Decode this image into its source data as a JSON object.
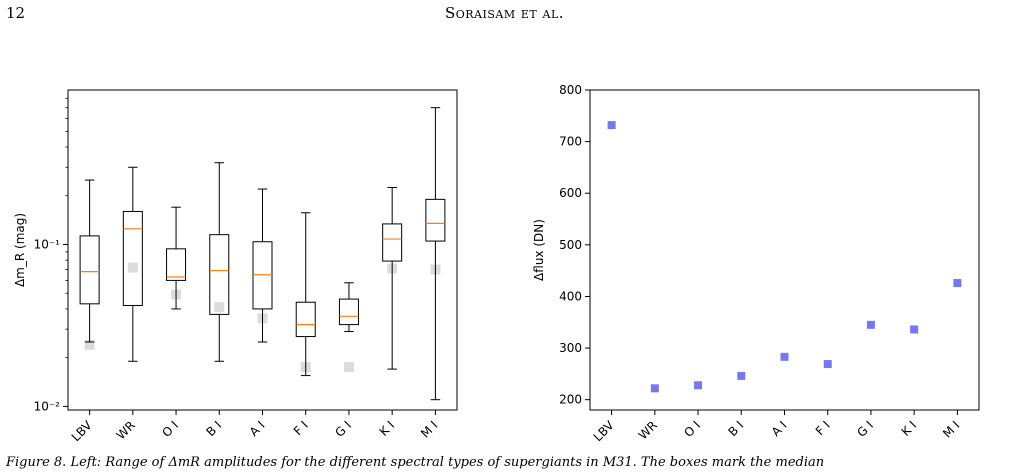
{
  "page": {
    "number": "12",
    "running_head": "Soraisam et al."
  },
  "caption": "Figure 8.   Left: Range of ΔmR amplitudes for the different spectral types of supergiants in M31. The boxes mark the median",
  "chart_data": [
    {
      "type": "box",
      "scale": "log",
      "ylabel": "Δm_R (mag)",
      "ylim": [
        0.0095,
        0.9
      ],
      "yticks": [
        0.01,
        0.1
      ],
      "ytick_labels": [
        "10⁻²",
        "10⁻¹"
      ],
      "categories": [
        "LBV",
        "WR",
        "O I",
        "B I",
        "A I",
        "F I",
        "G I",
        "K I",
        "M I"
      ],
      "boxes": [
        {
          "whisker_low": 0.025,
          "q1": 0.043,
          "median": 0.068,
          "q3": 0.113,
          "whisker_high": 0.25,
          "marker": 0.024
        },
        {
          "whisker_low": 0.019,
          "q1": 0.042,
          "median": 0.125,
          "q3": 0.16,
          "whisker_high": 0.3,
          "marker": 0.072
        },
        {
          "whisker_low": 0.04,
          "q1": 0.06,
          "median": 0.063,
          "q3": 0.094,
          "whisker_high": 0.17,
          "marker": 0.049
        },
        {
          "whisker_low": 0.019,
          "q1": 0.037,
          "median": 0.069,
          "q3": 0.115,
          "whisker_high": 0.32,
          "marker": 0.041
        },
        {
          "whisker_low": 0.025,
          "q1": 0.04,
          "median": 0.065,
          "q3": 0.104,
          "whisker_high": 0.22,
          "marker": 0.035
        },
        {
          "whisker_low": 0.0155,
          "q1": 0.027,
          "median": 0.032,
          "q3": 0.044,
          "whisker_high": 0.157,
          "marker": 0.0175
        },
        {
          "whisker_low": 0.029,
          "q1": 0.032,
          "median": 0.036,
          "q3": 0.046,
          "whisker_high": 0.058,
          "marker": 0.0175
        },
        {
          "whisker_low": 0.017,
          "q1": 0.079,
          "median": 0.108,
          "q3": 0.134,
          "whisker_high": 0.225,
          "marker": 0.071
        },
        {
          "whisker_low": 0.011,
          "q1": 0.105,
          "median": 0.135,
          "q3": 0.19,
          "whisker_high": 0.7,
          "marker": 0.07
        }
      ],
      "colors": {
        "box": "#000000",
        "median": "#ff7f0e",
        "marker": "#dcdcdc"
      }
    },
    {
      "type": "scatter",
      "ylabel": "Δflux (DN)",
      "ylim": [
        180,
        800
      ],
      "yticks": [
        200,
        300,
        400,
        500,
        600,
        700,
        800
      ],
      "categories": [
        "LBV",
        "WR",
        "O I",
        "B I",
        "A I",
        "F I",
        "G I",
        "K I",
        "M I"
      ],
      "values": [
        732,
        222,
        228,
        246,
        283,
        269,
        345,
        336,
        426
      ],
      "colors": {
        "marker": "#7777ee"
      }
    }
  ]
}
